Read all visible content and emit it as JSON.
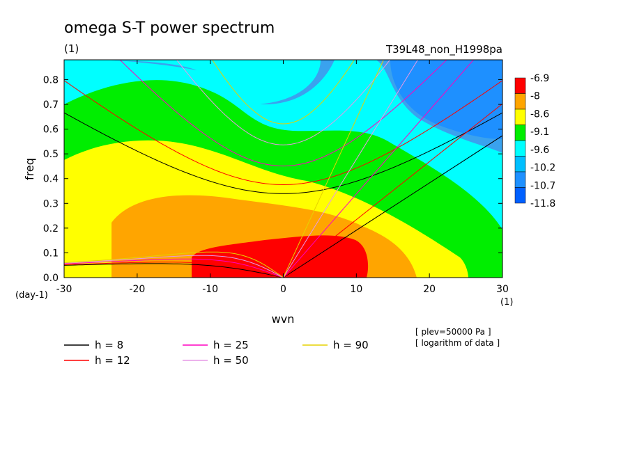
{
  "chart_data": {
    "type": "heatmap",
    "title": "omega S-T power spectrum",
    "subtitle_left": "(1)",
    "subtitle_right": "T39L48_non_H1998pa",
    "xlabel": "wvn",
    "ylabel": "freq",
    "y_unit": "(day-1)",
    "x_unit": "(1)",
    "xlim": [
      -30,
      30
    ],
    "ylim": [
      0,
      0.88
    ],
    "x_ticks": [
      "-30",
      "-20",
      "-10",
      "0",
      "10",
      "20",
      "30"
    ],
    "y_ticks": [
      "0.0",
      "0.1",
      "0.2",
      "0.3",
      "0.4",
      "0.5",
      "0.6",
      "0.7",
      "0.8"
    ],
    "colorbar": {
      "labels": [
        "-6.9",
        "-8",
        "-8.6",
        "-9.1",
        "-9.6",
        "-10.2",
        "-10.7",
        "-11.8"
      ],
      "colors": [
        "#ff0000",
        "#ffa500",
        "#ffff00",
        "#00ee00",
        "#00ffff",
        "#00bfff",
        "#1e90ff",
        "#0060ff"
      ]
    },
    "contour_field": {
      "description_levels": [
        -6.9,
        -8,
        -8.6,
        -9.1,
        -9.6,
        -10.2,
        -10.7,
        -11.8
      ],
      "max_region": {
        "wvn": [
          -12,
          12
        ],
        "freq": [
          0,
          0.17
        ]
      }
    },
    "dispersion_curves": [
      {
        "name": "h =  8",
        "h": 8,
        "color": "#000000"
      },
      {
        "name": "h = 12",
        "h": 12,
        "color": "#ff0000"
      },
      {
        "name": "h = 25",
        "h": 25,
        "color": "#ff00c0"
      },
      {
        "name": "h = 50",
        "h": 50,
        "color": "#e699e6"
      },
      {
        "name": "h = 90",
        "h": 90,
        "color": "#e6d200"
      }
    ],
    "notes": [
      "[ plev=50000 Pa ]",
      "[ logarithm of data ]"
    ]
  }
}
